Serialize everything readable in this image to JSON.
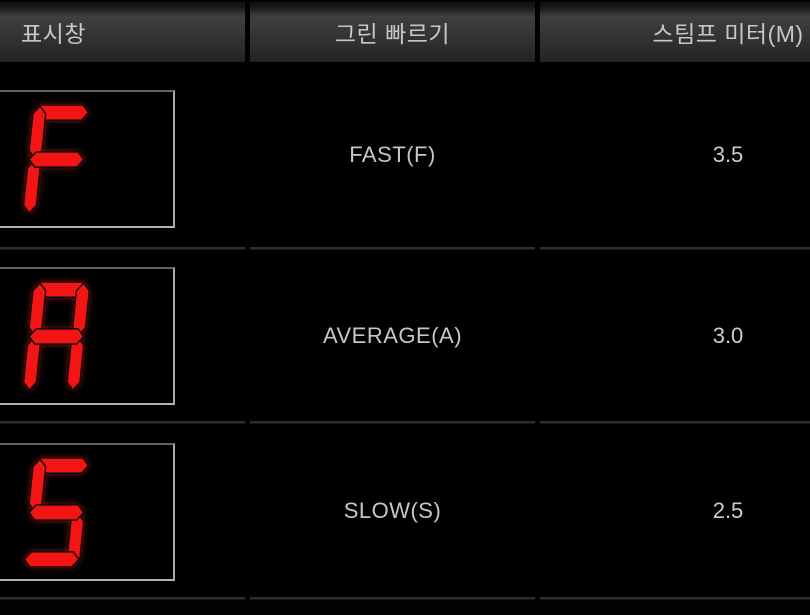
{
  "table": {
    "headers": [
      {
        "id": "display",
        "label": "표시창"
      },
      {
        "id": "green_speed",
        "label": "그린 빠르기"
      },
      {
        "id": "stimp_meter",
        "label": "스팀프 미터(M)"
      }
    ],
    "rows": [
      {
        "display_char": "F",
        "segments": [
          "a",
          "e",
          "f",
          "g"
        ],
        "speed_label": "FAST(F)",
        "stimp": "3.5"
      },
      {
        "display_char": "A",
        "segments": [
          "a",
          "b",
          "c",
          "e",
          "f",
          "g"
        ],
        "speed_label": "AVERAGE(A)",
        "stimp": "3.0"
      },
      {
        "display_char": "S",
        "segments": [
          "a",
          "c",
          "d",
          "f",
          "g"
        ],
        "speed_label": "SLOW(S)",
        "stimp": "2.5"
      }
    ]
  },
  "colors": {
    "background": "#000000",
    "header_gradient_top": "#3f3f3f",
    "header_gradient_bottom": "#232323",
    "header_text": "#c8c8c8",
    "cell_text": "#c6c6c6",
    "segment_red": "#f31414",
    "display_box_border": "#a8a8a8",
    "row_divider": "#2f2f2f"
  }
}
